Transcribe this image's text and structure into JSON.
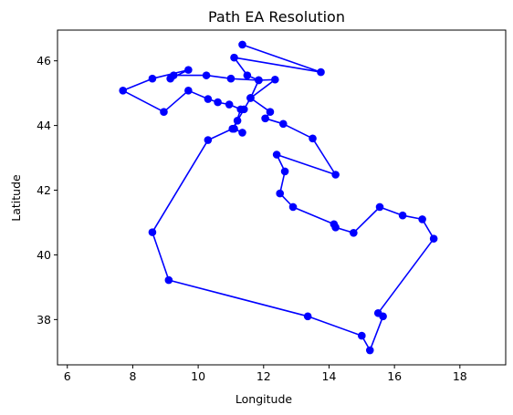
{
  "chart_data": {
    "type": "line",
    "title": "Path EA Resolution",
    "xlabel": "Longitude",
    "ylabel": "Latitude",
    "xlim": [
      5.7,
      19.4
    ],
    "ylim": [
      36.6,
      46.95
    ],
    "xticks": [
      6,
      8,
      10,
      12,
      14,
      16,
      18
    ],
    "yticks": [
      38,
      40,
      42,
      44,
      46
    ],
    "grid": false,
    "color": "#0000ff",
    "marker": "circle",
    "series": [
      {
        "x": [
          11.35,
          13.75,
          11.1,
          11.5,
          11.85,
          12.35,
          11.6,
          11.4,
          11.2,
          11.05,
          10.3,
          8.6,
          9.1,
          13.35,
          15.0,
          15.25,
          15.65,
          15.5,
          17.2,
          16.85,
          16.25,
          15.55,
          14.75,
          14.2,
          14.15,
          12.9,
          12.5,
          12.65,
          12.4,
          14.2,
          13.5,
          12.6,
          12.05,
          12.2,
          11.6,
          11.85,
          11.0,
          10.25,
          9.25,
          9.15,
          9.7,
          8.6,
          7.7,
          8.95,
          9.7,
          10.3,
          10.6,
          10.95,
          11.3,
          11.1,
          11.35
        ],
        "y": [
          46.5,
          45.65,
          46.1,
          45.55,
          45.4,
          45.42,
          44.85,
          44.5,
          44.15,
          43.9,
          43.55,
          40.7,
          39.22,
          38.1,
          37.5,
          37.05,
          38.1,
          38.2,
          40.5,
          41.1,
          41.22,
          41.48,
          40.68,
          40.85,
          40.95,
          41.48,
          41.9,
          42.58,
          43.1,
          42.48,
          43.6,
          44.05,
          44.22,
          44.42,
          44.85,
          45.4,
          45.45,
          45.55,
          45.55,
          45.45,
          45.72,
          45.45,
          45.08,
          44.42,
          45.08,
          44.82,
          44.72,
          44.65,
          44.5,
          43.9,
          43.78
        ]
      }
    ]
  }
}
